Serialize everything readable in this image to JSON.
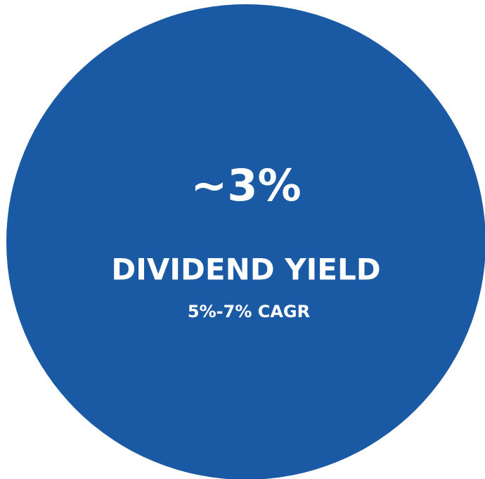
{
  "headline": "~3%",
  "label": "DIVIDEND YIELD",
  "sublabel": "5%-7% CAGR"
}
